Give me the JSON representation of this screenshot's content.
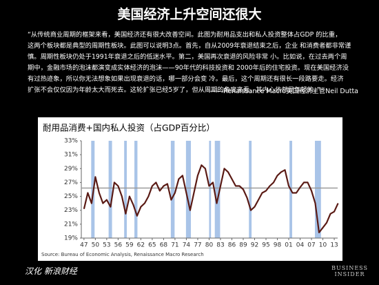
{
  "header": {
    "title": "美国经济上升空间还很大",
    "quote_lines": [
      "“从传统商业周期的框架来看，美国经济还有很大改善空间。此图为耐用品支出和私人投资整体占GDP 的比重，",
      "这两个板块都是典型的周期性板块。此图可以说明3点。首先，自从2009年衰退结束之后，企业 和消费者都非常谨",
      "慎。周期性板块仍处于1991年衰退之后的低迷水平。第二，美国再次衰退的风险非常 小。比如说，在过去两个周",
      "期中，金融市场的泡沫都演变成实体经济的泡沫——90年代的科技投资和 2000年后的住宅投资。现在美国经济没",
      "有过热迹象，所以你无法想象如果出现衰退的话，哪一部分会变 冷。最后，这个周期还有很长一段路要走。经济",
      "扩张不会仅仅因为年龄太大而死去。这轮扩张已经5岁了，但从周期的角度来看，其内心依然是年轻的。”"
    ],
    "attribution": "——Renaissance Macro美国经济主管Neil Dutta"
  },
  "chart_data": {
    "type": "line",
    "title": "耐用品消费+国内私人投资（占GDP百分比）",
    "source": "Source: Bureau of Economic Analysis, Renaissance Macro Research",
    "x": [
      1947,
      1948,
      1949,
      1950,
      1951,
      1952,
      1953,
      1954,
      1955,
      1956,
      1957,
      1958,
      1959,
      1960,
      1961,
      1962,
      1963,
      1964,
      1965,
      1966,
      1967,
      1968,
      1969,
      1970,
      1971,
      1972,
      1973,
      1974,
      1975,
      1976,
      1977,
      1978,
      1979,
      1980,
      1981,
      1982,
      1983,
      1984,
      1985,
      1986,
      1987,
      1988,
      1989,
      1990,
      1991,
      1992,
      1993,
      1994,
      1995,
      1996,
      1997,
      1998,
      1999,
      2000,
      2001,
      2002,
      2003,
      2004,
      2005,
      2006,
      2007,
      2008,
      2009,
      2010,
      2011,
      2012,
      2013,
      2014
    ],
    "series": [
      {
        "color": "#5a1a14",
        "values": [
          23.2,
          25.5,
          24.0,
          27.8,
          25.5,
          24.0,
          24.5,
          23.5,
          27.0,
          26.5,
          25.0,
          22.5,
          25.0,
          23.8,
          22.2,
          23.5,
          24.0,
          25.0,
          26.5,
          27.0,
          25.8,
          26.5,
          26.8,
          24.5,
          25.5,
          27.5,
          28.0,
          25.5,
          23.0,
          25.5,
          28.0,
          29.5,
          29.0,
          26.5,
          27.0,
          24.0,
          26.5,
          29.0,
          28.5,
          27.5,
          26.5,
          26.5,
          26.0,
          24.8,
          23.0,
          23.5,
          24.5,
          25.5,
          25.8,
          26.5,
          27.0,
          28.0,
          28.5,
          28.8,
          26.5,
          25.5,
          25.5,
          26.3,
          27.0,
          27.0,
          25.8,
          24.0,
          19.8,
          20.5,
          21.2,
          22.5,
          22.8,
          24.0
        ]
      }
    ],
    "reference_line": 26.2,
    "reference_color": "#9a9a9a",
    "shaded_periods": [
      [
        1948.9,
        1949.8
      ],
      [
        1953.5,
        1954.4
      ],
      [
        1957.6,
        1958.3
      ],
      [
        1960.3,
        1961.1
      ],
      [
        1969.9,
        1970.9
      ],
      [
        1973.9,
        1975.2
      ],
      [
        1980.0,
        1980.5
      ],
      [
        1981.5,
        1982.9
      ],
      [
        1990.5,
        1991.2
      ],
      [
        2001.2,
        2001.9
      ],
      [
        2007.9,
        2009.5
      ]
    ],
    "shade_color": "#a9c4e8",
    "xlim": [
      1946.3,
      2013.9
    ],
    "ylim": [
      19,
      33
    ],
    "xticks": [
      {
        "value": 1947,
        "label": "47"
      },
      {
        "value": 1950,
        "label": "50"
      },
      {
        "value": 1953,
        "label": "53"
      },
      {
        "value": 1956,
        "label": "56"
      },
      {
        "value": 1959,
        "label": "59"
      },
      {
        "value": 1962,
        "label": "62"
      },
      {
        "value": 1965,
        "label": "65"
      },
      {
        "value": 1968,
        "label": "68"
      },
      {
        "value": 1971,
        "label": "71"
      },
      {
        "value": 1974,
        "label": "74"
      },
      {
        "value": 1977,
        "label": "77"
      },
      {
        "value": 1980,
        "label": "80"
      },
      {
        "value": 1983,
        "label": "83"
      },
      {
        "value": 1986,
        "label": "86"
      },
      {
        "value": 1989,
        "label": "89"
      },
      {
        "value": 1992,
        "label": "92"
      },
      {
        "value": 1995,
        "label": "95"
      },
      {
        "value": 1998,
        "label": "98"
      },
      {
        "value": 2001,
        "label": "01"
      },
      {
        "value": 2004,
        "label": "04"
      },
      {
        "value": 2007,
        "label": "07"
      },
      {
        "value": 2010,
        "label": "10"
      },
      {
        "value": 2013,
        "label": "13"
      }
    ],
    "yticks": [
      {
        "value": 19,
        "label": "19%"
      },
      {
        "value": 21,
        "label": "21%"
      },
      {
        "value": 23,
        "label": "23%"
      },
      {
        "value": 25,
        "label": "25%"
      },
      {
        "value": 27,
        "label": "27%"
      },
      {
        "value": 29,
        "label": "29%"
      },
      {
        "value": 31,
        "label": "31%"
      },
      {
        "value": 33,
        "label": "33%"
      }
    ]
  },
  "footer": {
    "credit": "汉化 新浪财经",
    "brand_lines": [
      "BUSINESS",
      "INSIDER"
    ]
  }
}
